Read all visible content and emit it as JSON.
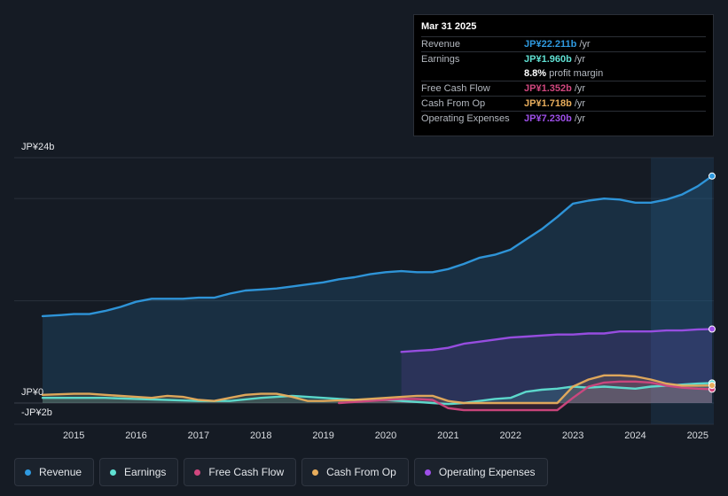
{
  "tooltip": {
    "date": "Mar 31 2025",
    "rows": [
      {
        "label": "Revenue",
        "value": "JP¥22.211b",
        "unit": "/yr",
        "color": "#2f9ae0"
      },
      {
        "label": "Earnings",
        "value": "JP¥1.960b",
        "unit": "/yr",
        "color": "#5fe0d2"
      },
      {
        "label": "",
        "value": "8.8%",
        "unit": "profit margin",
        "color": "#ffffff"
      },
      {
        "label": "Free Cash Flow",
        "value": "JP¥1.352b",
        "unit": "/yr",
        "color": "#d1477f"
      },
      {
        "label": "Cash From Op",
        "value": "JP¥1.718b",
        "unit": "/yr",
        "color": "#e8ad5c"
      },
      {
        "label": "Operating Expenses",
        "value": "JP¥7.230b",
        "unit": "/yr",
        "color": "#9d4fe8"
      }
    ]
  },
  "legend": [
    {
      "label": "Revenue",
      "color": "#2f9ae0"
    },
    {
      "label": "Earnings",
      "color": "#5fe0d2"
    },
    {
      "label": "Free Cash Flow",
      "color": "#d1477f"
    },
    {
      "label": "Cash From Op",
      "color": "#e8ad5c"
    },
    {
      "label": "Operating Expenses",
      "color": "#9d4fe8"
    }
  ],
  "chart_data": {
    "type": "area",
    "title": "",
    "y_unit": "JP¥ billions",
    "ylim": [
      -2,
      24
    ],
    "y_tick_labels": [
      {
        "value": 24,
        "label": "JP¥24b"
      },
      {
        "value": 0,
        "label": "JP¥0"
      },
      {
        "value": -2,
        "label": "-JP¥2b"
      }
    ],
    "x_ticks": [
      2015,
      2016,
      2017,
      2018,
      2019,
      2020,
      2021,
      2022,
      2023,
      2024,
      2025
    ],
    "xlim": [
      2014.5,
      2025.23
    ],
    "highlight_start": 2024.25,
    "series": [
      {
        "name": "Revenue",
        "color": "#2f9ae0",
        "fill": true,
        "x": [
          2014.5,
          2014.8,
          2015.0,
          2015.25,
          2015.5,
          2015.75,
          2016.0,
          2016.25,
          2016.5,
          2016.75,
          2017.0,
          2017.25,
          2017.5,
          2017.75,
          2018.0,
          2018.25,
          2018.5,
          2018.75,
          2019.0,
          2019.25,
          2019.5,
          2019.75,
          2020.0,
          2020.25,
          2020.5,
          2020.75,
          2021.0,
          2021.25,
          2021.5,
          2021.75,
          2022.0,
          2022.25,
          2022.5,
          2022.75,
          2023.0,
          2023.25,
          2023.5,
          2023.75,
          2024.0,
          2024.25,
          2024.5,
          2024.75,
          2025.0,
          2025.23
        ],
        "y": [
          8.5,
          8.6,
          8.7,
          8.7,
          9.0,
          9.4,
          9.9,
          10.2,
          10.2,
          10.2,
          10.3,
          10.3,
          10.7,
          11.0,
          11.1,
          11.2,
          11.4,
          11.6,
          11.8,
          12.1,
          12.3,
          12.6,
          12.8,
          12.9,
          12.8,
          12.8,
          13.1,
          13.6,
          14.2,
          14.5,
          15.0,
          16.0,
          17.0,
          18.2,
          19.5,
          19.8,
          20.0,
          19.9,
          19.6,
          19.6,
          19.9,
          20.4,
          21.2,
          22.2
        ]
      },
      {
        "name": "Operating Expenses",
        "color": "#9d4fe8",
        "fill": true,
        "x": [
          2020.25,
          2020.5,
          2020.75,
          2021.0,
          2021.25,
          2021.5,
          2021.75,
          2022.0,
          2022.25,
          2022.5,
          2022.75,
          2023.0,
          2023.25,
          2023.5,
          2023.75,
          2024.0,
          2024.25,
          2024.5,
          2024.75,
          2025.0,
          2025.23
        ],
        "y": [
          5.0,
          5.1,
          5.2,
          5.4,
          5.8,
          6.0,
          6.2,
          6.4,
          6.5,
          6.6,
          6.7,
          6.7,
          6.8,
          6.8,
          7.0,
          7.0,
          7.0,
          7.1,
          7.1,
          7.2,
          7.23
        ]
      },
      {
        "name": "Earnings",
        "color": "#5fe0d2",
        "fill": true,
        "x": [
          2014.5,
          2015.0,
          2015.5,
          2016.0,
          2016.5,
          2017.0,
          2017.5,
          2018.0,
          2018.5,
          2019.0,
          2019.5,
          2020.0,
          2020.5,
          2020.75,
          2021.0,
          2021.25,
          2021.5,
          2021.75,
          2022.0,
          2022.25,
          2022.5,
          2022.75,
          2023.0,
          2023.25,
          2023.5,
          2023.75,
          2024.0,
          2024.25,
          2024.5,
          2024.75,
          2025.0,
          2025.23
        ],
        "y": [
          0.5,
          0.5,
          0.5,
          0.4,
          0.3,
          0.2,
          0.2,
          0.5,
          0.7,
          0.5,
          0.3,
          0.3,
          0.1,
          0.0,
          -0.1,
          0.0,
          0.2,
          0.4,
          0.5,
          1.1,
          1.3,
          1.4,
          1.6,
          1.5,
          1.6,
          1.5,
          1.4,
          1.6,
          1.7,
          1.8,
          1.9,
          1.96
        ]
      },
      {
        "name": "Free Cash Flow",
        "color": "#d1477f",
        "fill": true,
        "x": [
          2019.25,
          2019.5,
          2019.75,
          2020.0,
          2020.25,
          2020.5,
          2020.75,
          2021.0,
          2021.25,
          2021.5,
          2021.75,
          2022.0,
          2022.25,
          2022.5,
          2022.75,
          2023.0,
          2023.25,
          2023.5,
          2023.75,
          2024.0,
          2024.25,
          2024.5,
          2024.75,
          2025.0,
          2025.23
        ],
        "y": [
          0.0,
          0.1,
          0.2,
          0.3,
          0.4,
          0.4,
          0.3,
          -0.5,
          -0.7,
          -0.7,
          -0.7,
          -0.7,
          -0.7,
          -0.7,
          -0.7,
          0.5,
          1.6,
          2.0,
          2.1,
          2.1,
          2.0,
          1.7,
          1.5,
          1.4,
          1.352
        ]
      },
      {
        "name": "Cash From Op",
        "color": "#e8ad5c",
        "fill": true,
        "x": [
          2014.5,
          2015.0,
          2015.25,
          2015.5,
          2016.0,
          2016.25,
          2016.5,
          2016.75,
          2017.0,
          2017.25,
          2017.5,
          2017.75,
          2018.0,
          2018.25,
          2018.5,
          2018.75,
          2019.0,
          2019.5,
          2020.0,
          2020.5,
          2020.75,
          2021.0,
          2021.25,
          2021.5,
          2021.75,
          2022.0,
          2022.25,
          2022.5,
          2022.75,
          2023.0,
          2023.25,
          2023.5,
          2023.75,
          2024.0,
          2024.25,
          2024.5,
          2024.75,
          2025.0,
          2025.23
        ],
        "y": [
          0.8,
          0.9,
          0.9,
          0.8,
          0.6,
          0.5,
          0.7,
          0.6,
          0.3,
          0.2,
          0.5,
          0.8,
          0.9,
          0.9,
          0.6,
          0.2,
          0.2,
          0.3,
          0.5,
          0.7,
          0.7,
          0.2,
          0.0,
          0.0,
          0.0,
          0.0,
          0.0,
          0.0,
          0.0,
          1.6,
          2.3,
          2.7,
          2.7,
          2.6,
          2.3,
          1.9,
          1.7,
          1.7,
          1.718
        ]
      }
    ]
  }
}
